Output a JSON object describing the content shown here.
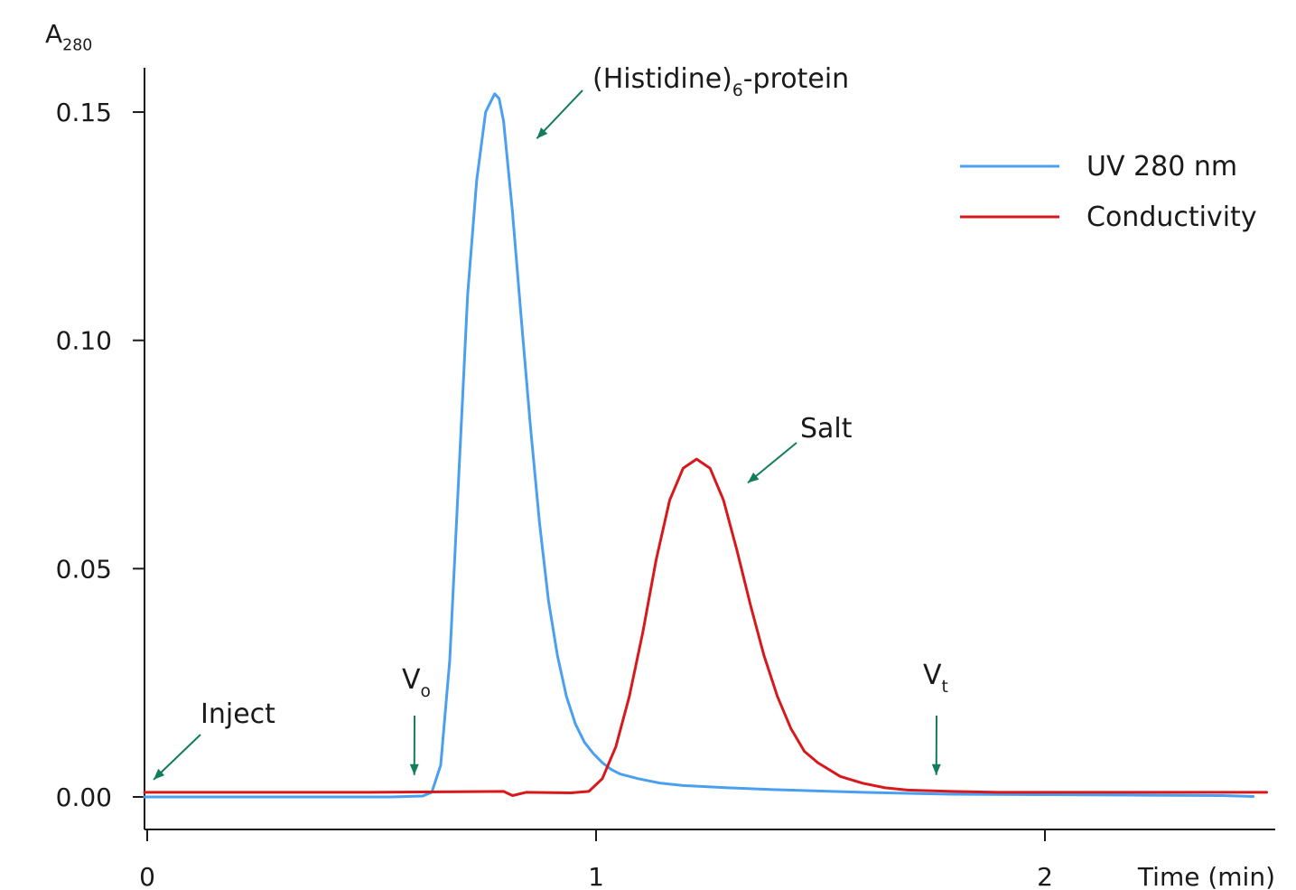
{
  "chart_data": {
    "type": "line",
    "ylabel": {
      "main": "A",
      "sub": "280"
    },
    "xlabel": "Time (min)",
    "xlim": [
      0,
      2.5
    ],
    "ylim": [
      0,
      0.16
    ],
    "xticks": [
      0,
      1,
      2
    ],
    "xtick_labels": [
      "0",
      "1",
      "2"
    ],
    "yticks": [
      0,
      0.05,
      0.1,
      0.15
    ],
    "ytick_labels": [
      "0.00",
      "0.05",
      "0.10",
      "0.15"
    ],
    "legend_position": "top-right",
    "series": [
      {
        "name": "UV 280 nm",
        "color": "#4a9ff0",
        "x": [
          0,
          0.2,
          0.4,
          0.55,
          0.62,
          0.64,
          0.66,
          0.68,
          0.7,
          0.72,
          0.74,
          0.76,
          0.78,
          0.79,
          0.8,
          0.82,
          0.84,
          0.86,
          0.88,
          0.9,
          0.92,
          0.94,
          0.96,
          0.98,
          1.0,
          1.02,
          1.04,
          1.06,
          1.1,
          1.15,
          1.2,
          1.3,
          1.4,
          1.5,
          1.6,
          1.7,
          1.8,
          2.0,
          2.2,
          2.4,
          2.47
        ],
        "y": [
          0.0,
          0.0,
          0.0,
          0.0,
          0.0002,
          0.001,
          0.007,
          0.03,
          0.07,
          0.11,
          0.135,
          0.15,
          0.154,
          0.153,
          0.148,
          0.128,
          0.104,
          0.081,
          0.06,
          0.043,
          0.031,
          0.022,
          0.016,
          0.012,
          0.0095,
          0.0075,
          0.006,
          0.005,
          0.004,
          0.003,
          0.0025,
          0.002,
          0.0016,
          0.0013,
          0.001,
          0.0008,
          0.0006,
          0.0005,
          0.0004,
          0.0003,
          0.0001
        ]
      },
      {
        "name": "Conductivity",
        "color": "#d7191c",
        "x": [
          0,
          0.5,
          0.8,
          0.82,
          0.85,
          0.95,
          0.99,
          1.02,
          1.05,
          1.08,
          1.11,
          1.14,
          1.17,
          1.2,
          1.23,
          1.26,
          1.29,
          1.32,
          1.35,
          1.38,
          1.41,
          1.44,
          1.47,
          1.5,
          1.55,
          1.6,
          1.65,
          1.7,
          1.8,
          1.9,
          2.0,
          2.2,
          2.4,
          2.5
        ],
        "y": [
          0.001,
          0.001,
          0.0012,
          0.0003,
          0.001,
          0.0009,
          0.0012,
          0.004,
          0.011,
          0.022,
          0.036,
          0.052,
          0.065,
          0.072,
          0.074,
          0.072,
          0.065,
          0.054,
          0.042,
          0.031,
          0.022,
          0.015,
          0.01,
          0.0075,
          0.0045,
          0.003,
          0.002,
          0.0015,
          0.0012,
          0.001,
          0.001,
          0.001,
          0.001,
          0.001
        ]
      }
    ],
    "annotations": [
      {
        "id": "inject",
        "text": "Inject",
        "x": 0.0,
        "y": 0.003
      },
      {
        "id": "protein",
        "text": "(Histidine)",
        "sub": "6",
        "suffix": "-protein",
        "x": 0.87,
        "y": 0.145
      },
      {
        "id": "salt",
        "text": "Salt",
        "x": 1.34,
        "y": 0.068
      },
      {
        "id": "vo",
        "text": "V",
        "sub": "o",
        "x": 0.595,
        "y": 0.004
      },
      {
        "id": "vt",
        "text": "V",
        "sub": "t",
        "x": 1.76,
        "y": 0.004
      }
    ],
    "annotation_color": "#127d5c"
  }
}
